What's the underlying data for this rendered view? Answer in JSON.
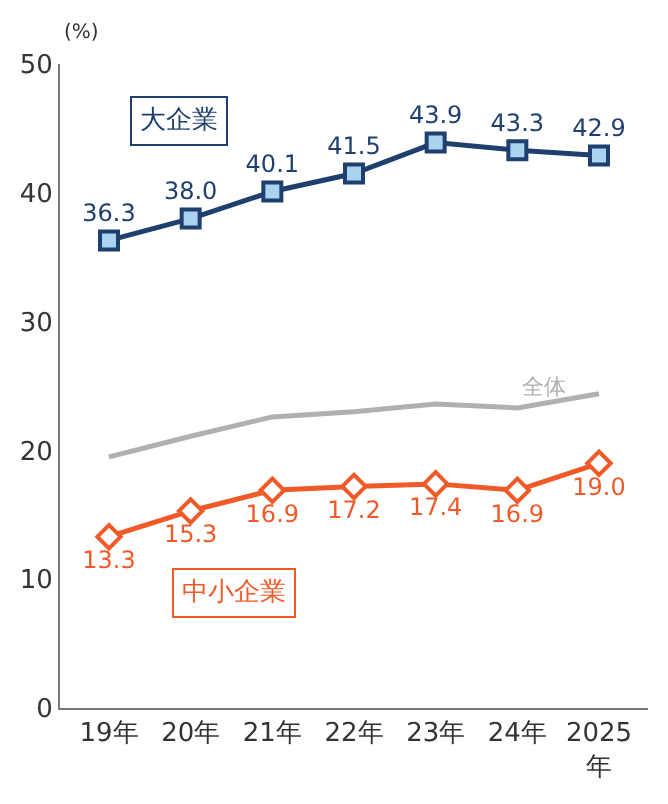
{
  "chart_data": {
    "type": "line",
    "ylabel": "(%)",
    "categories": [
      "19年",
      "20年",
      "21年",
      "22年",
      "23年",
      "24年",
      "2025\n年"
    ],
    "ylim": [
      0,
      50
    ],
    "yticks": [
      0,
      10,
      20,
      30,
      40,
      50
    ],
    "series": [
      {
        "name": "大企業",
        "color": "#1f3f6e",
        "marker": "square",
        "values": [
          36.3,
          38.0,
          40.1,
          41.5,
          43.9,
          43.3,
          42.9
        ],
        "value_labels": [
          "36.3",
          "38.0",
          "40.1",
          "41.5",
          "43.9",
          "43.3",
          "42.9"
        ]
      },
      {
        "name": "全体",
        "color": "#b0b0b0",
        "marker": "none",
        "values": [
          19.5,
          21.1,
          22.6,
          23.0,
          23.6,
          23.3,
          24.4
        ]
      },
      {
        "name": "中小企業",
        "color": "#f05a28",
        "marker": "diamond",
        "values": [
          13.3,
          15.3,
          16.9,
          17.2,
          17.4,
          16.9,
          19.0
        ],
        "value_labels": [
          "13.3",
          "15.3",
          "16.9",
          "17.2",
          "17.4",
          "16.9",
          "19.0"
        ]
      }
    ]
  }
}
